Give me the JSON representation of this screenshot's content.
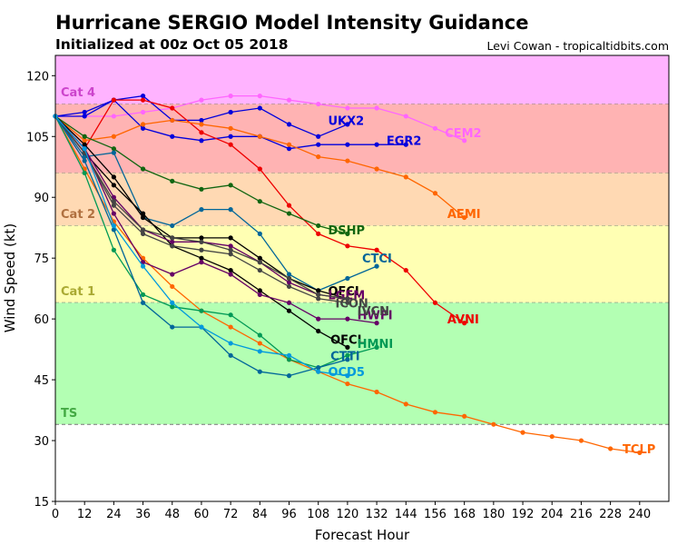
{
  "title": "Hurricane SERGIO Model Intensity Guidance",
  "subtitle": "Initialized at 00z Oct 05 2018",
  "credit": "Levi Cowan - tropicaltidbits.com",
  "chart_data": {
    "type": "line",
    "xlabel": "Forecast Hour",
    "ylabel": "Wind Speed (kt)",
    "xlim": [
      0,
      252
    ],
    "ylim": [
      15,
      125
    ],
    "xticks": [
      0,
      12,
      24,
      36,
      48,
      60,
      72,
      84,
      96,
      108,
      120,
      132,
      144,
      156,
      168,
      180,
      192,
      204,
      216,
      228,
      240
    ],
    "yticks": [
      15,
      30,
      45,
      60,
      75,
      90,
      105,
      120
    ],
    "grid": false,
    "legend": "none",
    "categories": [
      {
        "name": "Cat 4",
        "from": 113,
        "to": 125,
        "fill": "#ffb3ff",
        "text": "#cc44cc",
        "label_y": 116
      },
      {
        "name": "Cat 3",
        "from": 96,
        "to": 113,
        "fill": "#ffb3b3",
        "text": "#c03030",
        "label_y": 93
      },
      {
        "name": "Cat 2",
        "from": 83,
        "to": 96,
        "fill": "#ffd9b3",
        "text": "#b07040",
        "label_y": 86
      },
      {
        "name": "Cat 1",
        "from": 64,
        "to": 83,
        "fill": "#ffffb3",
        "text": "#aaaa33",
        "label_y": 67
      },
      {
        "name": "TS",
        "from": 34,
        "to": 64,
        "fill": "#b3ffb3",
        "text": "#44aa44",
        "label_y": 37
      }
    ],
    "series": [
      {
        "name": "CEM2",
        "color": "#ff66ff",
        "x": [
          0,
          12,
          24,
          36,
          48,
          60,
          72,
          84,
          96,
          108,
          120,
          132,
          144,
          156,
          168
        ],
        "y": [
          110,
          110,
          110,
          111,
          112,
          114,
          115,
          115,
          114,
          113,
          112,
          112,
          110,
          107,
          104
        ],
        "label": {
          "x": 160,
          "y": 106,
          "text": "CEM2"
        }
      },
      {
        "name": "UKX2",
        "color": "#0000dd",
        "x": [
          0,
          12,
          24,
          36,
          48,
          60,
          72,
          84,
          96,
          108,
          120
        ],
        "y": [
          110,
          111,
          114,
          115,
          109,
          109,
          111,
          112,
          108,
          105,
          108
        ],
        "label": {
          "x": 112,
          "y": 109,
          "text": "UKX2"
        }
      },
      {
        "name": "EGR2",
        "color": "#0000dd",
        "x": [
          0,
          12,
          24,
          36,
          48,
          60,
          72,
          84,
          96,
          108,
          120,
          132,
          144
        ],
        "y": [
          110,
          110,
          114,
          107,
          105,
          104,
          105,
          105,
          102,
          103,
          103,
          103,
          103
        ],
        "label": {
          "x": 136,
          "y": 104,
          "text": "EGR2"
        }
      },
      {
        "name": "AVNI",
        "color": "#ee0000",
        "x": [
          0,
          12,
          24,
          36,
          48,
          60,
          72,
          84,
          96,
          108,
          120,
          132,
          144,
          156,
          168
        ],
        "y": [
          110,
          102,
          114,
          114,
          112,
          106,
          103,
          97,
          88,
          81,
          78,
          77,
          72,
          64,
          59
        ],
        "label": {
          "x": 161,
          "y": 60,
          "text": "AVNI"
        }
      },
      {
        "name": "AEMI",
        "color": "#ff6600",
        "x": [
          0,
          12,
          24,
          36,
          48,
          60,
          72,
          84,
          96,
          108,
          120,
          132,
          144,
          156,
          168
        ],
        "y": [
          110,
          104,
          105,
          108,
          109,
          108,
          107,
          105,
          103,
          100,
          99,
          97,
          95,
          91,
          85
        ],
        "label": {
          "x": 161,
          "y": 86,
          "text": "AEMI"
        }
      },
      {
        "name": "DSHP",
        "color": "#116611",
        "x": [
          0,
          12,
          24,
          36,
          48,
          60,
          72,
          84,
          96,
          108,
          120
        ],
        "y": [
          110,
          105,
          102,
          97,
          94,
          92,
          93,
          89,
          86,
          83,
          81
        ],
        "label": {
          "x": 112,
          "y": 82,
          "text": "DSHP"
        }
      },
      {
        "name": "CTCI",
        "color": "#006699",
        "x": [
          0,
          12,
          24,
          36,
          48,
          60,
          72,
          84,
          96,
          108,
          120,
          132
        ],
        "y": [
          110,
          100,
          101,
          85,
          83,
          87,
          87,
          81,
          71,
          67,
          70,
          73
        ],
        "label": {
          "x": 126,
          "y": 75,
          "text": "CTCI"
        }
      },
      {
        "name": "TCLP",
        "color": "#ff6600",
        "x": [
          0,
          12,
          24,
          36,
          48,
          60,
          72,
          84,
          96,
          108,
          120,
          132,
          144,
          156,
          168,
          180,
          192,
          204,
          216,
          228,
          240
        ],
        "y": [
          110,
          97,
          84,
          75,
          68,
          62,
          58,
          54,
          50,
          47,
          44,
          42,
          39,
          37,
          36,
          34,
          32,
          31,
          30,
          28,
          27
        ],
        "label": {
          "x": 233,
          "y": 28,
          "text": "TCLP"
        }
      },
      {
        "name": "OFCI",
        "color": "#000000",
        "x": [
          0,
          12,
          24,
          36,
          48,
          60,
          72,
          84,
          96,
          108,
          120
        ],
        "y": [
          110,
          103,
          95,
          85,
          80,
          80,
          80,
          75,
          70,
          67,
          65
        ],
        "label": {
          "x": 112,
          "y": 67,
          "text": "OFCI"
        }
      },
      {
        "name": "OFCL",
        "color": "#000000",
        "x": [
          0,
          12,
          24,
          36,
          48,
          60,
          72,
          84,
          96,
          108,
          120
        ],
        "y": [
          110,
          101,
          93,
          86,
          78,
          75,
          72,
          67,
          62,
          57,
          53
        ],
        "label": {
          "x": 113,
          "y": 55,
          "text": "OFCL"
        }
      },
      {
        "name": "HWFI",
        "color": "#660066",
        "x": [
          0,
          12,
          24,
          36,
          48,
          60,
          72,
          84,
          96,
          108,
          120,
          132
        ],
        "y": [
          110,
          102,
          86,
          74,
          71,
          74,
          71,
          66,
          64,
          60,
          60,
          59
        ],
        "label": {
          "x": 124,
          "y": 61,
          "text": "HWFI"
        }
      },
      {
        "name": "LGEM",
        "color": "#660066",
        "x": [
          0,
          12,
          24,
          36,
          48,
          60,
          72,
          84,
          96,
          108,
          120
        ],
        "y": [
          110,
          102,
          90,
          82,
          79,
          79,
          78,
          74,
          69,
          66,
          65
        ],
        "label": {
          "x": 112,
          "y": 66,
          "text": "LGEM"
        }
      },
      {
        "name": "ICON",
        "color": "#444444",
        "x": [
          0,
          12,
          24,
          36,
          48,
          60,
          72,
          84,
          96,
          108,
          120
        ],
        "y": [
          110,
          101,
          88,
          81,
          78,
          77,
          76,
          72,
          68,
          65,
          64
        ],
        "label": {
          "x": 115,
          "y": 64,
          "text": "ICON"
        }
      },
      {
        "name": "IVCN",
        "color": "#444444",
        "x": [
          0,
          12,
          24,
          36,
          48,
          60,
          72,
          84,
          96,
          108,
          120
        ],
        "y": [
          110,
          101,
          89,
          82,
          80,
          79,
          77,
          74,
          70,
          66,
          65
        ],
        "label": {
          "x": 124,
          "y": 62,
          "text": "IVCN"
        }
      },
      {
        "name": "HMNI",
        "color": "#009955",
        "x": [
          0,
          12,
          24,
          36,
          48,
          60,
          72,
          84,
          96,
          108,
          120,
          132
        ],
        "y": [
          110,
          96,
          77,
          66,
          63,
          62,
          61,
          56,
          50,
          48,
          51,
          53
        ],
        "label": {
          "x": 124,
          "y": 54,
          "text": "HMNI"
        }
      },
      {
        "name": "CTTI",
        "color": "#006699",
        "x": [
          0,
          12,
          24,
          36,
          48,
          60,
          72,
          84,
          96,
          108,
          120
        ],
        "y": [
          110,
          99,
          82,
          64,
          58,
          58,
          51,
          47,
          46,
          48,
          50
        ],
        "label": {
          "x": 113,
          "y": 51,
          "text": "CTTI"
        }
      },
      {
        "name": "OCD5",
        "color": "#0099dd",
        "x": [
          0,
          12,
          24,
          36,
          48,
          60,
          72,
          84,
          96,
          108,
          120
        ],
        "y": [
          110,
          102,
          83,
          73,
          64,
          58,
          54,
          52,
          51,
          47,
          46
        ],
        "label": {
          "x": 112,
          "y": 47,
          "text": "OCD5"
        }
      }
    ]
  }
}
